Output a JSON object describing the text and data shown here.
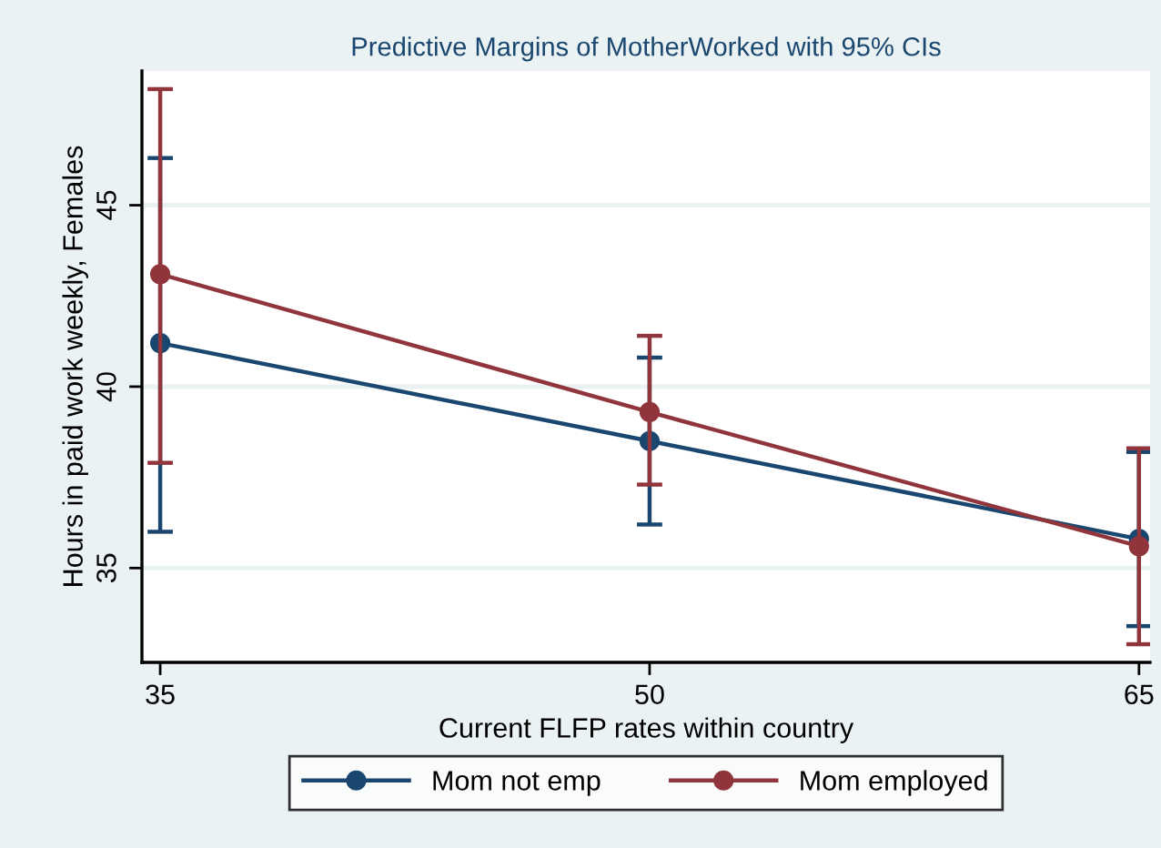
{
  "chart_data": {
    "type": "line",
    "title": "Predictive Margins of MotherWorked with 95% CIs",
    "xlabel": "Current FLFP rates within country",
    "ylabel": "Hours in paid work weekly, Females",
    "x": [
      35,
      50,
      65
    ],
    "series": [
      {
        "name": "Mom not emp",
        "color": "#1a476f",
        "values": [
          41.2,
          38.5,
          35.8
        ],
        "errors": [
          [
            36.0,
            46.3
          ],
          [
            36.2,
            40.8
          ],
          [
            33.4,
            38.2
          ]
        ]
      },
      {
        "name": "Mom employed",
        "color": "#90353b",
        "values": [
          43.1,
          39.3,
          35.6
        ],
        "errors": [
          [
            37.9,
            48.2
          ],
          [
            37.3,
            41.4
          ],
          [
            32.9,
            38.3
          ]
        ]
      }
    ],
    "xlim": [
      34.44,
      65.34
    ],
    "ylim": [
      32.4,
      48.7
    ],
    "xticks": [
      35,
      50,
      65
    ],
    "yticks": [
      35,
      40,
      45
    ],
    "grid": "y",
    "legend": "bottom",
    "marker": "circle",
    "line_style": "solid"
  }
}
